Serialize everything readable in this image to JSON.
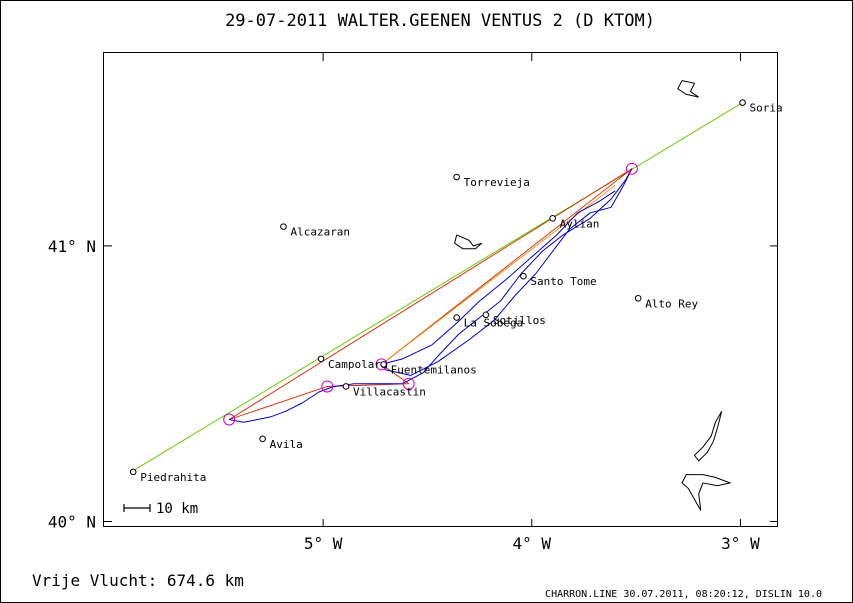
{
  "header": {
    "title": "29-07-2011    WALTER.GEENEN    VENTUS 2 (D KTOM)"
  },
  "footer": {
    "distance_label": "Vrije Vlucht:  674.6 km",
    "software_credit": "CHARRON.LINE 30.07.2011, 08:20:12, DISLIN 10.0"
  },
  "scale_bar": {
    "label": "10 km",
    "km": 10
  },
  "axes": {
    "lon_ticks": [
      {
        "lon": -5,
        "label": "5° W"
      },
      {
        "lon": -4,
        "label": "4° W"
      },
      {
        "lon": -3,
        "label": "3° W"
      }
    ],
    "lat_ticks": [
      {
        "lat": 41,
        "label": "41° N"
      },
      {
        "lat": 40,
        "label": "40° N"
      }
    ],
    "lon_range": [
      -6.05,
      -2.82
    ],
    "lat_range": [
      39.98,
      41.7
    ]
  },
  "places": [
    {
      "name": "Soria",
      "lon": -2.99,
      "lat": 41.52
    },
    {
      "name": "Torrevieja",
      "lon": -4.36,
      "lat": 41.25
    },
    {
      "name": "Alcazaran",
      "lon": -5.19,
      "lat": 41.07
    },
    {
      "name": "Aylian",
      "lon": -3.9,
      "lat": 41.1
    },
    {
      "name": "Santo Tome",
      "lon": -4.04,
      "lat": 40.89
    },
    {
      "name": "Alto Rey",
      "lon": -3.49,
      "lat": 40.81
    },
    {
      "name": "La Sobega",
      "lon": -4.36,
      "lat": 40.74
    },
    {
      "name": "Sotillos",
      "lon": -4.22,
      "lat": 40.75
    },
    {
      "name": "Campolara",
      "lon": -5.01,
      "lat": 40.59
    },
    {
      "name": "Fuentemilanos",
      "lon": -4.71,
      "lat": 40.57
    },
    {
      "name": "Villacastin",
      "lon": -4.89,
      "lat": 40.49
    },
    {
      "name": "Avila",
      "lon": -5.29,
      "lat": 40.3
    },
    {
      "name": "Piedrahita",
      "lon": -5.91,
      "lat": 40.18
    }
  ],
  "turnpoints": [
    {
      "lon": -3.52,
      "lat": 41.28
    },
    {
      "lon": -5.45,
      "lat": 40.37
    },
    {
      "lon": -4.98,
      "lat": 40.49
    },
    {
      "lon": -4.59,
      "lat": 40.5
    },
    {
      "lon": -4.72,
      "lat": 40.57
    }
  ],
  "task_line": {
    "color": "#66cc00",
    "points": [
      {
        "lon": -5.92,
        "lat": 40.18
      },
      {
        "lon": -2.99,
        "lat": 41.52
      }
    ]
  },
  "triangle_lines": {
    "color": "#dd2200",
    "points": [
      {
        "lon": -3.52,
        "lat": 41.28
      },
      {
        "lon": -5.45,
        "lat": 40.37
      },
      {
        "lon": -4.98,
        "lat": 40.49
      },
      {
        "lon": -4.59,
        "lat": 40.5
      },
      {
        "lon": -4.72,
        "lat": 40.57
      },
      {
        "lon": -3.52,
        "lat": 41.28
      }
    ]
  },
  "orange_line": {
    "color": "#ee8800",
    "points": [
      {
        "lon": -4.72,
        "lat": 40.57
      },
      {
        "lon": -3.6,
        "lat": 41.22
      }
    ]
  },
  "flight_track": {
    "color": "#0000cc",
    "points": [
      {
        "lon": -5.45,
        "lat": 40.37
      },
      {
        "lon": -5.38,
        "lat": 40.36
      },
      {
        "lon": -5.25,
        "lat": 40.38
      },
      {
        "lon": -5.18,
        "lat": 40.4
      },
      {
        "lon": -5.1,
        "lat": 40.43
      },
      {
        "lon": -5.02,
        "lat": 40.47
      },
      {
        "lon": -4.95,
        "lat": 40.49
      },
      {
        "lon": -4.85,
        "lat": 40.5
      },
      {
        "lon": -4.75,
        "lat": 40.5
      },
      {
        "lon": -4.62,
        "lat": 40.5
      },
      {
        "lon": -4.52,
        "lat": 40.54
      },
      {
        "lon": -4.45,
        "lat": 40.6
      },
      {
        "lon": -4.35,
        "lat": 40.68
      },
      {
        "lon": -4.25,
        "lat": 40.74
      },
      {
        "lon": -4.15,
        "lat": 40.8
      },
      {
        "lon": -4.05,
        "lat": 40.9
      },
      {
        "lon": -3.95,
        "lat": 40.98
      },
      {
        "lon": -3.85,
        "lat": 41.04
      },
      {
        "lon": -3.72,
        "lat": 41.1
      },
      {
        "lon": -3.62,
        "lat": 41.17
      },
      {
        "lon": -3.55,
        "lat": 41.24
      },
      {
        "lon": -3.52,
        "lat": 41.28
      },
      {
        "lon": -3.56,
        "lat": 41.22
      },
      {
        "lon": -3.62,
        "lat": 41.14
      },
      {
        "lon": -3.72,
        "lat": 41.12
      },
      {
        "lon": -3.82,
        "lat": 41.06
      },
      {
        "lon": -3.9,
        "lat": 40.98
      },
      {
        "lon": -3.98,
        "lat": 40.9
      },
      {
        "lon": -4.08,
        "lat": 40.82
      },
      {
        "lon": -4.18,
        "lat": 40.73
      },
      {
        "lon": -4.3,
        "lat": 40.66
      },
      {
        "lon": -4.45,
        "lat": 40.58
      },
      {
        "lon": -4.58,
        "lat": 40.53
      },
      {
        "lon": -4.7,
        "lat": 40.55
      },
      {
        "lon": -4.72,
        "lat": 40.57
      },
      {
        "lon": -4.62,
        "lat": 40.59
      },
      {
        "lon": -4.48,
        "lat": 40.64
      },
      {
        "lon": -4.36,
        "lat": 40.72
      },
      {
        "lon": -4.25,
        "lat": 40.8
      },
      {
        "lon": -4.12,
        "lat": 40.88
      },
      {
        "lon": -4.0,
        "lat": 40.96
      },
      {
        "lon": -3.88,
        "lat": 41.04
      },
      {
        "lon": -3.78,
        "lat": 41.12
      },
      {
        "lon": -3.68,
        "lat": 41.16
      },
      {
        "lon": -3.6,
        "lat": 41.2
      }
    ]
  },
  "water_bodies": [
    {
      "color": "#000000",
      "points": [
        {
          "lon": -3.28,
          "lat": 41.6
        },
        {
          "lon": -3.22,
          "lat": 41.59
        },
        {
          "lon": -3.24,
          "lat": 41.56
        },
        {
          "lon": -3.2,
          "lat": 41.54
        },
        {
          "lon": -3.26,
          "lat": 41.55
        },
        {
          "lon": -3.3,
          "lat": 41.57
        },
        {
          "lon": -3.28,
          "lat": 41.6
        }
      ]
    },
    {
      "color": "#000000",
      "points": [
        {
          "lon": -4.36,
          "lat": 41.04
        },
        {
          "lon": -4.3,
          "lat": 41.02
        },
        {
          "lon": -4.28,
          "lat": 41.0
        },
        {
          "lon": -4.24,
          "lat": 41.01
        },
        {
          "lon": -4.27,
          "lat": 40.99
        },
        {
          "lon": -4.33,
          "lat": 40.99
        },
        {
          "lon": -4.37,
          "lat": 41.01
        },
        {
          "lon": -4.36,
          "lat": 41.04
        }
      ]
    },
    {
      "color": "#000000",
      "points": [
        {
          "lon": -3.09,
          "lat": 40.4
        },
        {
          "lon": -3.12,
          "lat": 40.36
        },
        {
          "lon": -3.14,
          "lat": 40.31
        },
        {
          "lon": -3.18,
          "lat": 40.27
        },
        {
          "lon": -3.22,
          "lat": 40.24
        },
        {
          "lon": -3.2,
          "lat": 40.22
        },
        {
          "lon": -3.16,
          "lat": 40.25
        },
        {
          "lon": -3.13,
          "lat": 40.29
        },
        {
          "lon": -3.11,
          "lat": 40.34
        },
        {
          "lon": -3.09,
          "lat": 40.4
        }
      ]
    },
    {
      "color": "#000000",
      "points": [
        {
          "lon": -3.26,
          "lat": 40.17
        },
        {
          "lon": -3.18,
          "lat": 40.17
        },
        {
          "lon": -3.12,
          "lat": 40.16
        },
        {
          "lon": -3.05,
          "lat": 40.14
        },
        {
          "lon": -3.11,
          "lat": 40.13
        },
        {
          "lon": -3.18,
          "lat": 40.14
        },
        {
          "lon": -3.2,
          "lat": 40.1
        },
        {
          "lon": -3.19,
          "lat": 40.04
        },
        {
          "lon": -3.22,
          "lat": 40.08
        },
        {
          "lon": -3.25,
          "lat": 40.12
        },
        {
          "lon": -3.28,
          "lat": 40.14
        },
        {
          "lon": -3.26,
          "lat": 40.17
        }
      ]
    }
  ]
}
